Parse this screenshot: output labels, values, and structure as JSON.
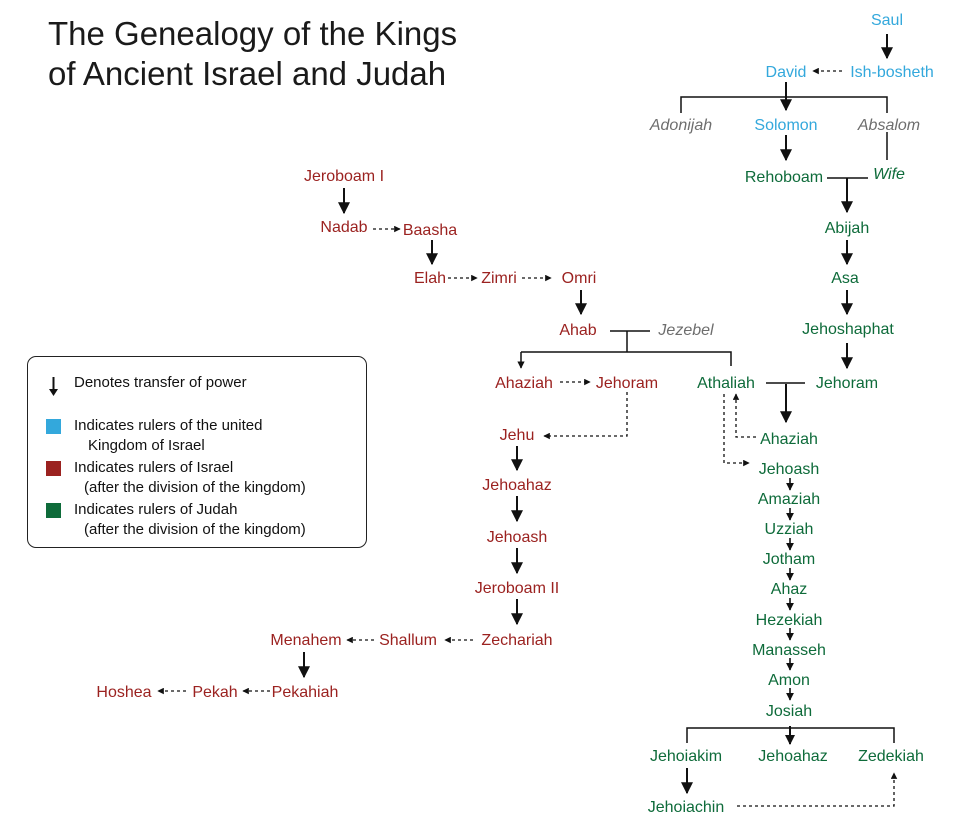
{
  "title": {
    "line1": "The Genealogy of the Kings",
    "line2": "of Ancient Israel and Judah"
  },
  "colors": {
    "united": "#33a8dc",
    "israel": "#9b2220",
    "judah": "#0e6b3a",
    "spouse": "#6e6e6e",
    "line": "#111111"
  },
  "legend": {
    "power": "Denotes transfer of power",
    "united_1": "Indicates rulers of the united",
    "united_2": "Kingdom of Israel",
    "israel_1": "Indicates rulers of Israel",
    "israel_2": "(after the division of the kingdom)",
    "judah_1": "Indicates rulers of Judah",
    "judah_2": "(after the division of the kingdom)"
  },
  "people": {
    "saul": "Saul",
    "david": "David",
    "ishbosheth": "Ish-bosheth",
    "adonijah": "Adonijah",
    "solomon": "Solomon",
    "absalom": "Absalom",
    "rehoboam": "Rehoboam",
    "wife": "Wife",
    "abijah": "Abijah",
    "asa": "Asa",
    "jehoshaphat": "Jehoshaphat",
    "jehoram_j": "Jehoram",
    "athaliah": "Athaliah",
    "ahaziah_j": "Ahaziah",
    "jehoash_j": "Jehoash",
    "amaziah": "Amaziah",
    "uzziah": "Uzziah",
    "jotham": "Jotham",
    "ahaz": "Ahaz",
    "hezekiah": "Hezekiah",
    "manasseh": "Manasseh",
    "amon": "Amon",
    "josiah": "Josiah",
    "jehoiakim": "Jehoiakim",
    "jehoahaz_j": "Jehoahaz",
    "zedekiah": "Zedekiah",
    "jehoiachin": "Jehoiachin",
    "jeroboam1": "Jeroboam I",
    "nadab": "Nadab",
    "baasha": "Baasha",
    "elah": "Elah",
    "zimri": "Zimri",
    "omri": "Omri",
    "ahab": "Ahab",
    "jezebel": "Jezebel",
    "ahaziah_i": "Ahaziah",
    "jehoram_i": "Jehoram",
    "jehu": "Jehu",
    "jehoahaz_i": "Jehoahaz",
    "jehoash_i": "Jehoash",
    "jeroboam2": "Jeroboam II",
    "zechariah": "Zechariah",
    "shallum": "Shallum",
    "menahem": "Menahem",
    "pekahiah": "Pekahiah",
    "pekah": "Pekah",
    "hoshea": "Hoshea"
  }
}
